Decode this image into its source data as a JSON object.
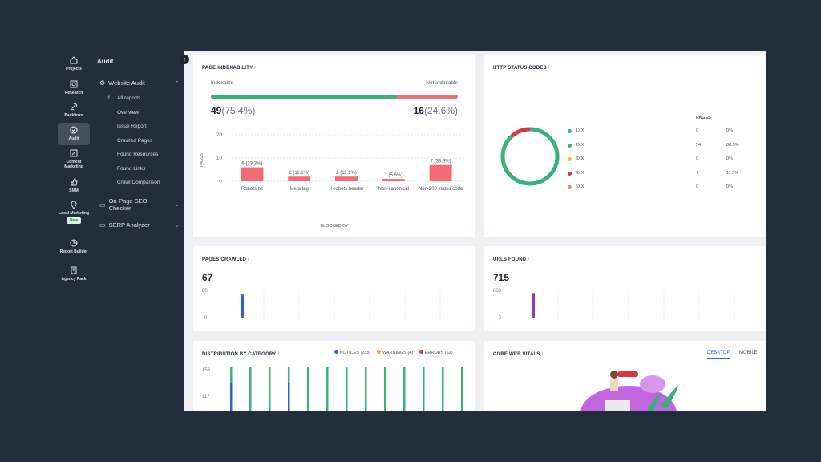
{
  "rail": [
    {
      "label": "Projects",
      "icon": "home-icon"
    },
    {
      "label": "Research",
      "icon": "research-icon"
    },
    {
      "label": "Backlinks",
      "icon": "link-icon"
    },
    {
      "label": "Audit",
      "icon": "audit-icon",
      "active": true
    },
    {
      "label": "Content Marketing",
      "icon": "edit-icon"
    },
    {
      "label": "SMM",
      "icon": "thumb-icon"
    },
    {
      "label": "Local Marketing",
      "icon": "pin-icon",
      "badge": "New"
    },
    {
      "label": "Report Builder",
      "icon": "report-icon"
    },
    {
      "label": "Agency Pack",
      "icon": "agency-icon"
    }
  ],
  "subnav": {
    "title": "Audit",
    "website_audit": "Website Audit",
    "num": "1.",
    "items": [
      "All reports",
      "Overview",
      "Issue Report",
      "Crawled Pages",
      "Found Resources",
      "Found Links",
      "Crawl Comparison"
    ],
    "onpage": "On-Page SEO Checker",
    "serp": "SERP Analyzer"
  },
  "indexability": {
    "title": "PAGE INDEXABILITY",
    "indexable_label": "Indexable",
    "not_indexable_label": "Not indexable",
    "indexable_value": "49",
    "indexable_pct": "(75.4%)",
    "not_indexable_value": "16",
    "not_indexable_pct": "(24.6%)",
    "indexable_fraction": 0.754,
    "colors": {
      "indexable": "#3ab07a",
      "not_indexable": "#f07078"
    },
    "ylabel": "PAGES",
    "xlabel": "BLOCKED BY"
  },
  "chart_data": [
    {
      "type": "bar",
      "title": "PAGE INDEXABILITY",
      "xlabel": "BLOCKED BY",
      "ylabel": "PAGES",
      "categories": [
        "Robots.txt",
        "Meta tag",
        "X-robots header",
        "Non-canonical",
        "Non-200 status code"
      ],
      "values": [
        6,
        2,
        2,
        1,
        7
      ],
      "labels": [
        "6 (33.3%)",
        "2 (11.1%)",
        "2 (11.1%)",
        "1 (5.6%)",
        "7 (38.9%)"
      ],
      "ylim": [
        0,
        20
      ],
      "yticks": [
        0,
        10,
        20
      ],
      "color": "#f46b73"
    },
    {
      "type": "pie",
      "title": "HTTP STATUS CODES",
      "categories": [
        "1XX",
        "2XX",
        "3XX",
        "4XX",
        "5XX"
      ],
      "values": [
        0,
        54,
        0,
        7,
        0
      ],
      "labels": [
        "0%",
        "88.5%",
        "0%",
        "11.5%",
        "0%"
      ],
      "colors": [
        "#2bb5a8",
        "#3ab07a",
        "#f0c419",
        "#d8344a",
        "#f58a63"
      ],
      "column_header": "PAGES"
    },
    {
      "type": "bar",
      "title": "PAGES CRAWLED",
      "total": "67",
      "yticks": [
        0,
        80
      ],
      "values": [
        67
      ],
      "color": "#2f63c8"
    },
    {
      "type": "bar",
      "title": "URLS FOUND",
      "total": "715",
      "yticks": [
        0,
        800
      ],
      "values": [
        715
      ],
      "color": "#8a3fbf"
    },
    {
      "type": "bar",
      "title": "DISTRIBUTION BY CATEGORY",
      "series": [
        {
          "name": "NOTICES (235)",
          "color": "#3ab07a"
        },
        {
          "name": "WARNINGS (4)",
          "color": "#f0a820"
        },
        {
          "name": "ERRORS (62)",
          "color": "#d8344a"
        }
      ],
      "yticks": [
        117,
        156
      ]
    }
  ],
  "http_status": {
    "title": "HTTP STATUS CODES",
    "pages_header": "PAGES",
    "rows": [
      {
        "code": "1XX",
        "pages": "0",
        "pct": "0%",
        "color": "#2bb5a8"
      },
      {
        "code": "2XX",
        "pages": "54",
        "pct": "88.5%",
        "color": "#3ab07a"
      },
      {
        "code": "3XX",
        "pages": "0",
        "pct": "0%",
        "color": "#f0c419"
      },
      {
        "code": "4XX",
        "pages": "7",
        "pct": "11.5%",
        "color": "#d8344a"
      },
      {
        "code": "5XX",
        "pages": "0",
        "pct": "0%",
        "color": "#f58a63"
      }
    ]
  },
  "pages_crawled": {
    "title": "PAGES CRAWLED",
    "total": "67",
    "ymax": "80",
    "ymin": "0"
  },
  "urls_found": {
    "title": "URLS FOUND",
    "total": "715",
    "ymax": "800",
    "ymin": "0"
  },
  "distribution": {
    "title": "DISTRIBUTION BY CATEGORY",
    "legend": [
      {
        "label": "NOTICES (235)",
        "color": "#2f63c8"
      },
      {
        "label": "WARNINGS (4)",
        "color": "#f0a820"
      },
      {
        "label": "ERRORS (62)",
        "color": "#d8344a"
      }
    ],
    "y1": "156",
    "y2": "117"
  },
  "cwv": {
    "title": "CORE WEB VITALS",
    "tab_desktop": "DESKTOP",
    "tab_mobile": "MOBILE"
  }
}
